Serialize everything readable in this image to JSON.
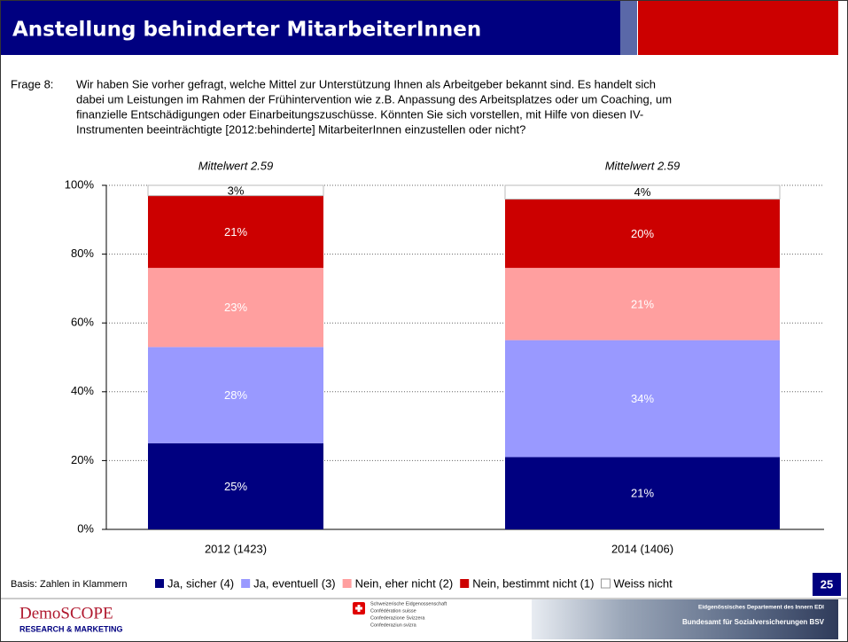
{
  "slide": {
    "title": "Anstellung behinderter MitarbeiterInnen",
    "question_label": "Frage 8:",
    "question_lines": [
      "Wir haben Sie vorher gefragt, welche Mittel zur Unterstützung Ihnen als Arbeitgeber bekannt sind. Es handelt sich",
      "dabei um Leistungen im Rahmen der Frühintervention wie z.B. Anpassung des Arbeitsplatzes oder um Coaching, um",
      "finanzielle Entschädigungen oder Einarbeitungszuschüsse. Könnten Sie sich vorstellen, mit Hilfe von diesen IV-",
      "Instrumenten beeinträchtigte [2012:behinderte] MitarbeiterInnen einzustellen oder nicht?"
    ],
    "basis_note": "Basis: Zahlen in Klammern",
    "page_number": "25",
    "footer": {
      "logo_name": "DemoSCOPE",
      "logo_tagline": "RESEARCH & MARKETING",
      "swiss_lines": [
        "Schweizerische Eidgenossenschaft",
        "Confédération suisse",
        "Confederazione Svizzera",
        "Confederaziun svizra"
      ],
      "department": "Eidgenössisches Departement des Innern EDI",
      "office": "Bundesamt für Sozialversicherungen BSV"
    }
  },
  "chart_data": {
    "type": "stacked_bar",
    "categories": [
      "2012 (1423)",
      "2014 (1406)"
    ],
    "annotations": [
      "Mittelwert 2.59",
      "Mittelwert 2.59"
    ],
    "series": [
      {
        "name": "Ja, sicher (4)",
        "color": "#000080",
        "values": [
          25,
          21
        ],
        "value_labels": [
          "25%",
          "21%"
        ]
      },
      {
        "name": "Ja, eventuell (3)",
        "color": "#9999ff",
        "values": [
          28,
          34
        ],
        "value_labels": [
          "28%",
          "34%"
        ]
      },
      {
        "name": "Nein, eher nicht (2)",
        "color": "#ff9f9f",
        "values": [
          23,
          21
        ],
        "value_labels": [
          "23%",
          "21%"
        ]
      },
      {
        "name": "Nein, bestimmt nicht (1)",
        "color": "#cc0000",
        "values": [
          21,
          20
        ],
        "value_labels": [
          "21%",
          "20%"
        ]
      },
      {
        "name": "Weiss nicht",
        "color": "#ffffff",
        "values": [
          3,
          4
        ],
        "value_labels": [
          "3%",
          "4%"
        ]
      }
    ],
    "ylim": [
      0,
      100
    ],
    "yticks": [
      {
        "value": 0,
        "label": "0%"
      },
      {
        "value": 20,
        "label": "20%"
      },
      {
        "value": 40,
        "label": "40%"
      },
      {
        "value": 60,
        "label": "60%"
      },
      {
        "value": 80,
        "label": "80%"
      },
      {
        "value": 100,
        "label": "100%"
      }
    ],
    "grid": true
  }
}
